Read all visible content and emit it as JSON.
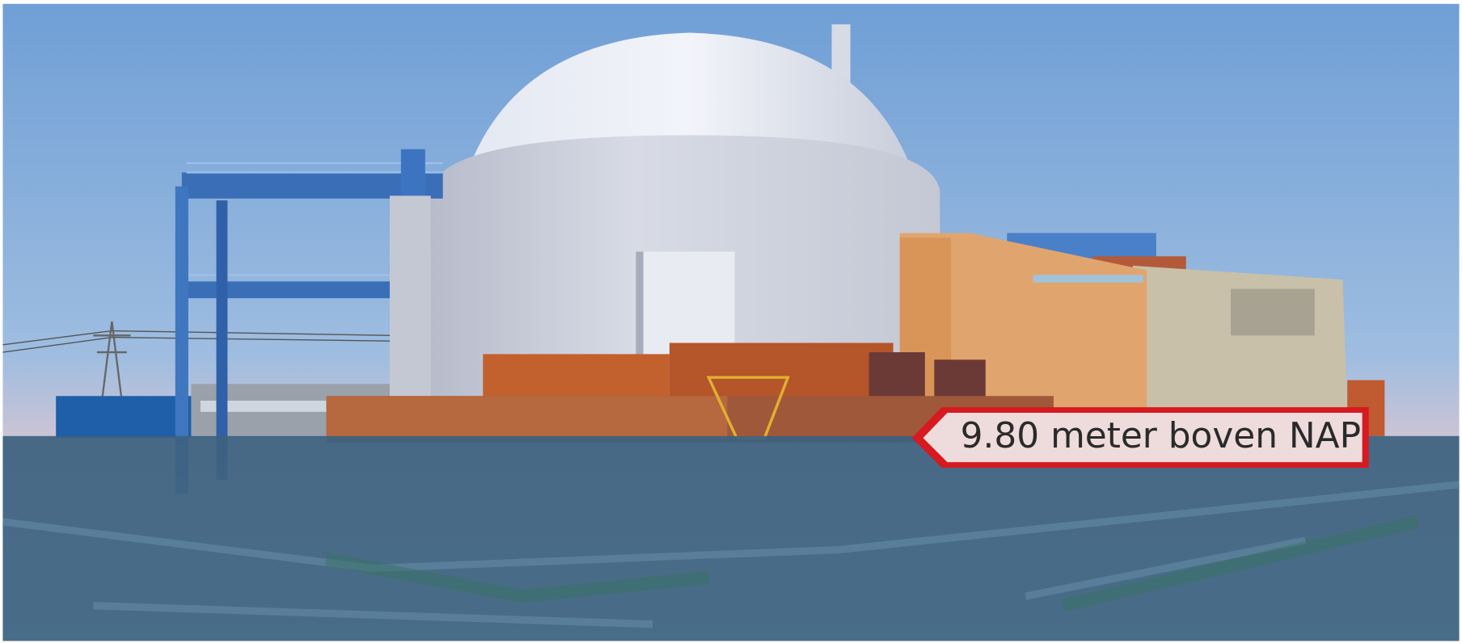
{
  "label": {
    "text": "9.80 meter boven NAP"
  }
}
